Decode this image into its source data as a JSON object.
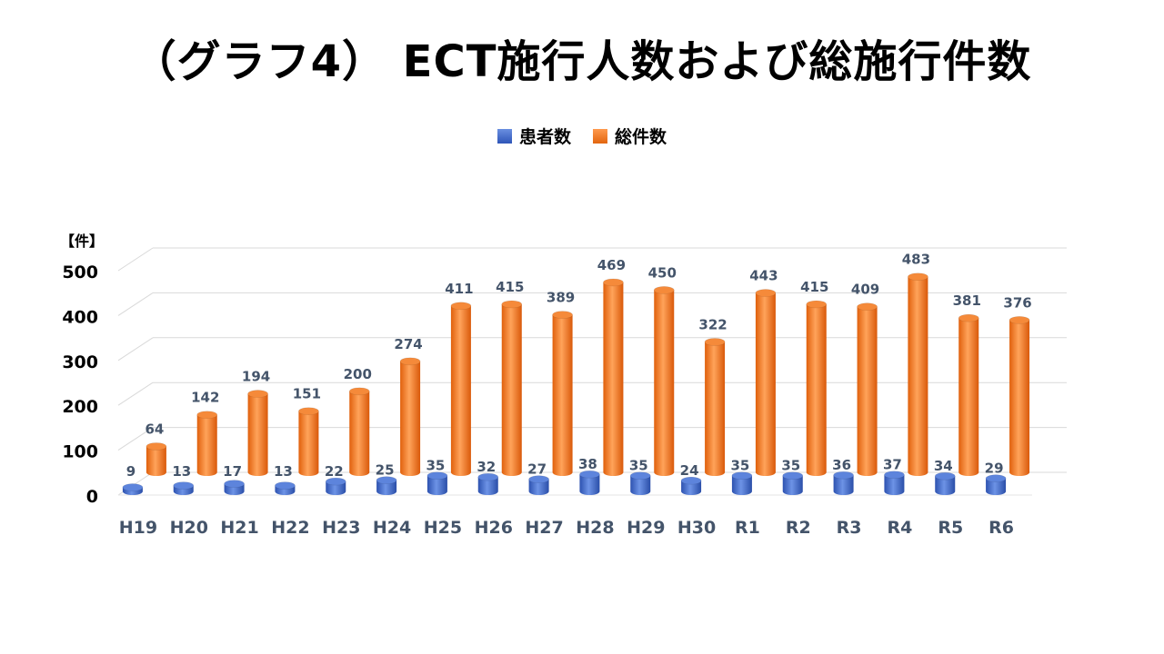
{
  "title": "（グラフ4） ECT施行人数および総施行件数",
  "legend": {
    "patients": "患者数",
    "total": "総件数"
  },
  "colors": {
    "patients": "#3a63c9",
    "total": "#f07a22",
    "label": "#44546a"
  },
  "chart_data": {
    "type": "bar",
    "categories": [
      "H19",
      "H20",
      "H21",
      "H22",
      "H23",
      "H24",
      "H25",
      "H26",
      "H27",
      "H28",
      "H29",
      "H30",
      "R1",
      "R2",
      "R3",
      "R4",
      "R5",
      "R6"
    ],
    "series": [
      {
        "name": "患者数",
        "values": [
          9,
          13,
          17,
          13,
          22,
          25,
          35,
          32,
          27,
          38,
          35,
          24,
          35,
          35,
          36,
          37,
          34,
          29
        ]
      },
      {
        "name": "総件数",
        "values": [
          64,
          142,
          194,
          151,
          200,
          274,
          411,
          415,
          389,
          469,
          450,
          322,
          443,
          415,
          409,
          483,
          381,
          376
        ]
      }
    ],
    "ylabel": "【件】",
    "ylim": [
      0,
      500
    ],
    "yticks": [
      0,
      100,
      200,
      300,
      400,
      500
    ],
    "grid": true,
    "legend_position": "top"
  }
}
